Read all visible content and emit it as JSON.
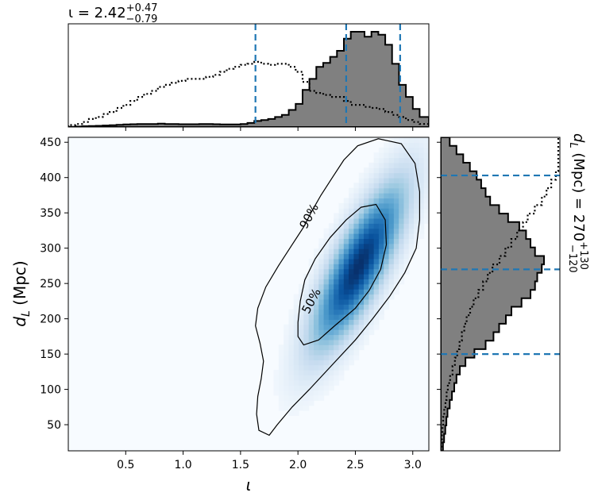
{
  "chart_data": {
    "type": "heatmap",
    "subtype": "corner-plot",
    "xlabel": "ι",
    "ylabel_main": "d",
    "ylabel_sub": "L",
    "ylabel_unit": " (Mpc)",
    "xlim": [
      0.0,
      3.14
    ],
    "ylim": [
      13,
      457
    ],
    "x_ticks": [
      0.5,
      1.0,
      1.5,
      2.0,
      2.5,
      3.0
    ],
    "x_tick_labels": [
      "0.5",
      "1.0",
      "1.5",
      "2.0",
      "2.5",
      "3.0"
    ],
    "y_ticks": [
      50,
      100,
      150,
      200,
      250,
      300,
      350,
      400,
      450
    ],
    "y_tick_labels": [
      "50",
      "100",
      "150",
      "200",
      "250",
      "300",
      "350",
      "400",
      "450"
    ],
    "colormap": "Blues",
    "colors": {
      "heat": "#08306b",
      "quantile_line": "#1f77b4",
      "hist_fill": "#808080",
      "contour": "#000000"
    },
    "density_peak": {
      "x": 2.53,
      "y": 275
    },
    "contours": [
      {
        "label": "90%",
        "label_pos": {
          "x": 2.1,
          "y": 345
        },
        "points": [
          [
            1.75,
            35
          ],
          [
            1.82,
            50
          ],
          [
            1.95,
            75
          ],
          [
            2.1,
            100
          ],
          [
            2.3,
            135
          ],
          [
            2.5,
            170
          ],
          [
            2.65,
            200
          ],
          [
            2.8,
            232
          ],
          [
            2.93,
            265
          ],
          [
            3.03,
            300
          ],
          [
            3.06,
            340
          ],
          [
            3.06,
            380
          ],
          [
            3.02,
            420
          ],
          [
            2.9,
            448
          ],
          [
            2.7,
            455
          ],
          [
            2.52,
            445
          ],
          [
            2.4,
            425
          ],
          [
            2.3,
            400
          ],
          [
            2.2,
            375
          ],
          [
            2.12,
            352
          ],
          [
            2.05,
            330
          ],
          [
            1.95,
            305
          ],
          [
            1.83,
            275
          ],
          [
            1.72,
            245
          ],
          [
            1.65,
            215
          ],
          [
            1.63,
            190
          ],
          [
            1.67,
            165
          ],
          [
            1.7,
            140
          ],
          [
            1.68,
            115
          ],
          [
            1.65,
            90
          ],
          [
            1.64,
            65
          ],
          [
            1.66,
            42
          ],
          [
            1.75,
            35
          ]
        ]
      },
      {
        "label": "50%",
        "label_pos": {
          "x": 2.12,
          "y": 225
        },
        "points": [
          [
            2.05,
            163
          ],
          [
            2.18,
            170
          ],
          [
            2.32,
            190
          ],
          [
            2.5,
            215
          ],
          [
            2.62,
            240
          ],
          [
            2.72,
            270
          ],
          [
            2.77,
            305
          ],
          [
            2.76,
            340
          ],
          [
            2.68,
            362
          ],
          [
            2.55,
            358
          ],
          [
            2.42,
            340
          ],
          [
            2.28,
            315
          ],
          [
            2.15,
            285
          ],
          [
            2.06,
            255
          ],
          [
            2.02,
            225
          ],
          [
            2.0,
            195
          ],
          [
            2.0,
            175
          ],
          [
            2.05,
            163
          ]
        ]
      }
    ],
    "top_marginal": {
      "title_base": "ι = 2.42",
      "title_sup": "+0.47",
      "title_sub": "−0.79",
      "quantiles": [
        1.63,
        2.42,
        2.89
      ],
      "bin_edges": [
        0.0,
        0.06,
        0.12,
        0.18,
        0.24,
        0.3,
        0.36,
        0.42,
        0.48,
        0.54,
        0.6,
        0.66,
        0.72,
        0.78,
        0.84,
        0.9,
        0.96,
        1.02,
        1.08,
        1.14,
        1.2,
        1.26,
        1.32,
        1.38,
        1.44,
        1.5,
        1.56,
        1.62,
        1.68,
        1.74,
        1.8,
        1.86,
        1.92,
        1.98,
        2.04,
        2.1,
        2.16,
        2.22,
        2.28,
        2.34,
        2.4,
        2.46,
        2.52,
        2.58,
        2.64,
        2.7,
        2.76,
        2.82,
        2.88,
        2.94,
        3.0,
        3.06,
        3.14
      ],
      "posterior": [
        0.2,
        0.5,
        0.8,
        1,
        1.2,
        1.5,
        1.8,
        2.2,
        2.5,
        2.8,
        3,
        3,
        3,
        3.3,
        3,
        3,
        2.8,
        2.8,
        2.8,
        3,
        3,
        2.8,
        2.5,
        2.5,
        2.5,
        3,
        4,
        6,
        7,
        8,
        10,
        12,
        17,
        23,
        37,
        48,
        60,
        64,
        70,
        76,
        88,
        95,
        95,
        90,
        95,
        92,
        82,
        63,
        42,
        30,
        18,
        10
      ],
      "prior": [
        2,
        3,
        5,
        8,
        10,
        13,
        15,
        19,
        22,
        26,
        30,
        33,
        36,
        40,
        42,
        44,
        46,
        48,
        48,
        48,
        50,
        52,
        55,
        58,
        60,
        62,
        63,
        65,
        63,
        62,
        63,
        63,
        60,
        55,
        45,
        36,
        34,
        32,
        30,
        30,
        26,
        22,
        22,
        20,
        19,
        18,
        15,
        12,
        10,
        7,
        5,
        3
      ]
    },
    "right_marginal": {
      "title_main": "d",
      "title_sub": "L",
      "title_unit": " (Mpc) = 270",
      "title_sup": "+130",
      "title_subval": "−120",
      "quantiles": [
        150,
        270,
        403
      ],
      "bin_edges": [
        13,
        25,
        37,
        49,
        61,
        73,
        85,
        97,
        109,
        121,
        133,
        145,
        157,
        169,
        181,
        193,
        205,
        217,
        229,
        241,
        253,
        265,
        277,
        289,
        301,
        313,
        325,
        337,
        349,
        361,
        373,
        385,
        397,
        409,
        421,
        433,
        445,
        457
      ],
      "posterior": [
        2,
        3,
        4,
        5,
        6,
        8,
        10,
        12,
        14,
        17,
        22,
        30,
        40,
        47,
        52,
        58,
        63,
        72,
        80,
        84,
        86,
        90,
        92,
        84,
        80,
        76,
        70,
        60,
        52,
        44,
        40,
        36,
        32,
        26,
        20,
        14,
        8
      ],
      "prior": [
        0.5,
        1,
        1.5,
        2,
        3,
        4,
        5,
        6,
        8,
        10,
        12,
        14,
        16,
        18,
        20,
        22,
        25,
        28,
        32,
        36,
        40,
        44,
        50,
        55,
        60,
        65,
        70,
        74,
        80,
        86,
        90,
        94,
        98,
        100,
        100,
        100,
        100
      ]
    }
  }
}
